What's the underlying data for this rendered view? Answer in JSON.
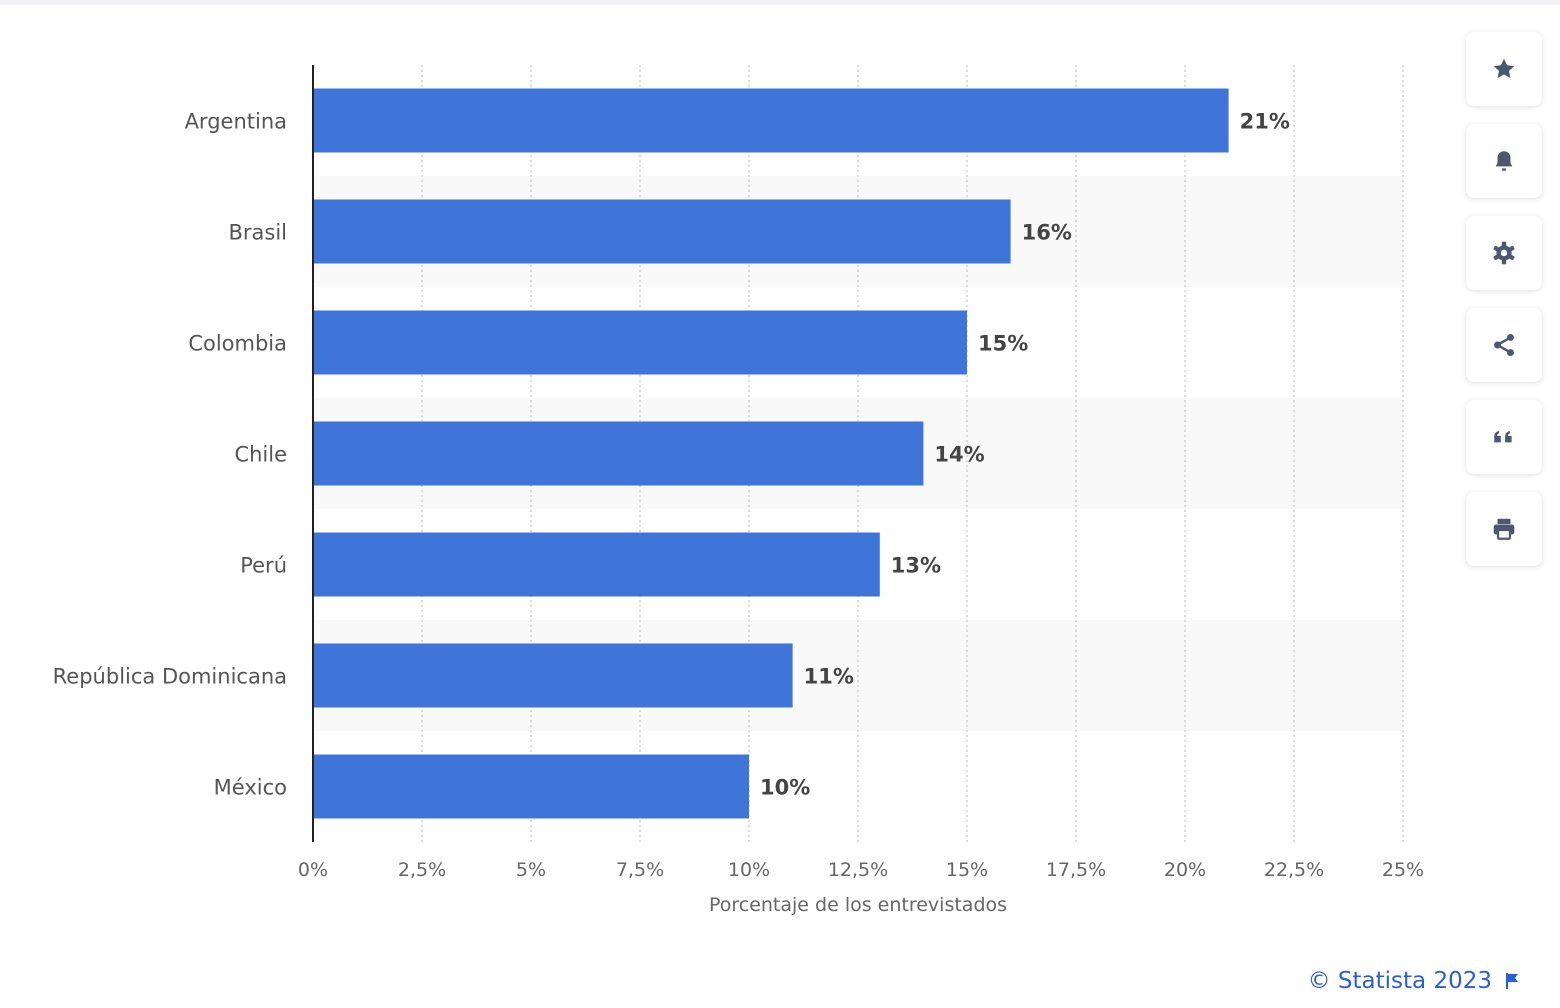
{
  "chart_data": {
    "type": "bar",
    "orientation": "horizontal",
    "categories": [
      "Argentina",
      "Brasil",
      "Colombia",
      "Chile",
      "Perú",
      "República Dominicana",
      "México"
    ],
    "values": [
      21,
      16,
      15,
      14,
      13,
      11,
      10
    ],
    "data_labels": [
      "21%",
      "16%",
      "15%",
      "14%",
      "13%",
      "11%",
      "10%"
    ],
    "xlabel": "Porcentaje de los entrevistados",
    "xlim": [
      0,
      25
    ],
    "x_ticks": [
      "0%",
      "2,5%",
      "5%",
      "7,5%",
      "10%",
      "12,5%",
      "15%",
      "17,5%",
      "20%",
      "22,5%",
      "25%"
    ],
    "grid": "vertical dotted",
    "bar_color": "#3f74d9"
  },
  "sidebar": {
    "buttons": [
      "star-icon",
      "bell-icon",
      "gear-icon",
      "share-icon",
      "quote-icon",
      "print-icon"
    ]
  },
  "footer": {
    "copyright": "© Statista 2023"
  },
  "colors": {
    "icon": "#4a5872",
    "footer": "#2b5fce",
    "band": "#f9f9f9",
    "grid": "#cfcfcf"
  }
}
